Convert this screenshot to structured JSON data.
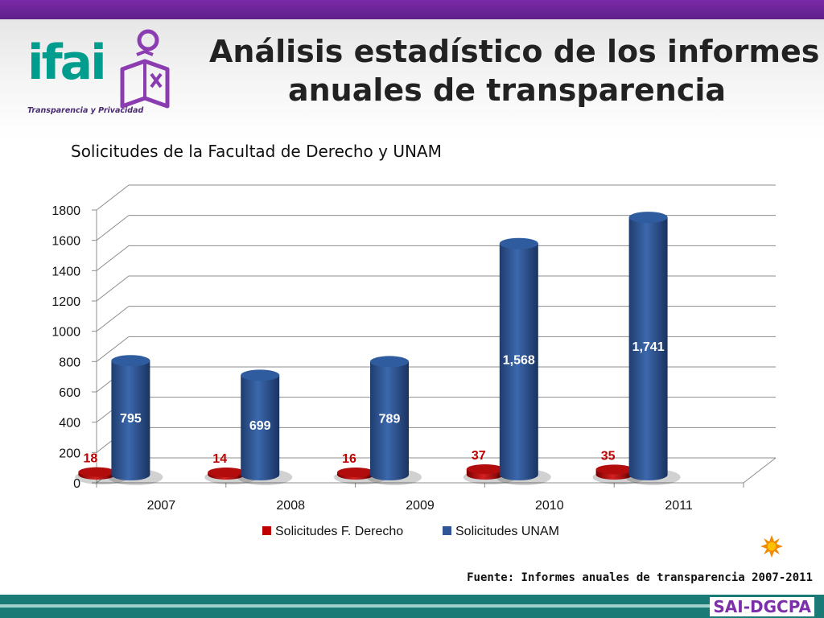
{
  "header": {
    "logo_text": "ifai",
    "logo_subtitle": "Transparencia y Privacidad",
    "title_line1": "Análisis estadístico de los informes",
    "title_line2": "anuales de transparencia"
  },
  "chart_data": {
    "type": "bar",
    "title": "Solicitudes de la Facultad de Derecho y UNAM",
    "categories": [
      "2007",
      "2008",
      "2009",
      "2010",
      "2011"
    ],
    "series": [
      {
        "name": "Solicitudes F. Derecho",
        "values": [
          18,
          14,
          16,
          37,
          35
        ],
        "labels": [
          "18",
          "14",
          "16",
          "37",
          "35"
        ],
        "color": "#c00000"
      },
      {
        "name": "Solicitudes UNAM",
        "values": [
          795,
          699,
          789,
          1568,
          1741
        ],
        "labels": [
          "795",
          "699",
          "789",
          "1,568",
          "1,741"
        ],
        "color": "#2f5597"
      }
    ],
    "ylim": [
      0,
      1800
    ],
    "yticks": [
      0,
      200,
      400,
      600,
      800,
      1000,
      1200,
      1400,
      1600,
      1800
    ],
    "grid": true,
    "legend": "bottom",
    "style": "3d-cylinder"
  },
  "footer": {
    "source": "Fuente: Informes anuales de transparencia 2007-2011",
    "label": "SAI-DGCPA"
  },
  "colors": {
    "header_bar": "#6a2a9a",
    "footer_bar": "#1a7a76",
    "logo_teal": "#009c8e",
    "logo_purple": "#8a3cb0"
  }
}
